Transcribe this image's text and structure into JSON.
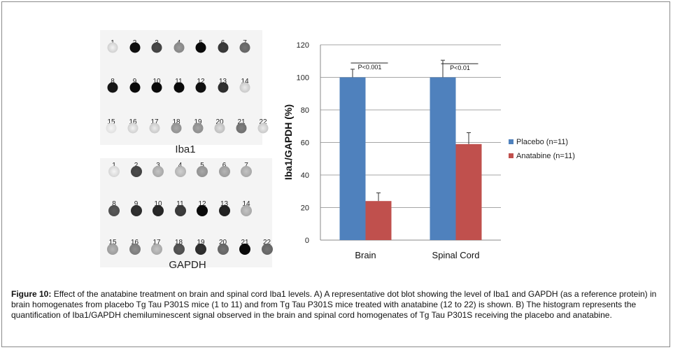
{
  "blots": [
    {
      "label": "Iba1",
      "rows": [
        {
          "samples": [
            "1",
            "2",
            "3",
            "4",
            "5",
            "6",
            "7"
          ],
          "intensity": [
            0.12,
            0.98,
            0.75,
            0.45,
            1.0,
            0.8,
            0.6
          ]
        },
        {
          "samples": [
            "8",
            "9",
            "10",
            "11",
            "12",
            "13",
            "14"
          ],
          "intensity": [
            0.95,
            1.0,
            1.0,
            1.0,
            0.98,
            0.85,
            0.15
          ]
        },
        {
          "samples": [
            "15",
            "16",
            "17",
            "18",
            "19",
            "20",
            "21",
            "22"
          ],
          "intensity": [
            0.05,
            0.12,
            0.15,
            0.4,
            0.42,
            0.2,
            0.55,
            0.15
          ]
        }
      ]
    },
    {
      "label": "GAPDH",
      "rows": [
        {
          "samples": [
            "1",
            "2",
            "3",
            "4",
            "5",
            "6",
            "7"
          ],
          "intensity": [
            0.1,
            0.75,
            0.3,
            0.25,
            0.4,
            0.35,
            0.3
          ]
        },
        {
          "samples": [
            "8",
            "9",
            "10",
            "11",
            "12",
            "13",
            "14"
          ],
          "intensity": [
            0.7,
            0.85,
            0.88,
            0.8,
            1.0,
            0.9,
            0.3
          ]
        },
        {
          "samples": [
            "15",
            "16",
            "17",
            "18",
            "19",
            "20",
            "21",
            "22"
          ],
          "intensity": [
            0.35,
            0.5,
            0.3,
            0.7,
            0.85,
            0.6,
            1.0,
            0.6
          ]
        }
      ]
    }
  ],
  "chart_data": {
    "type": "bar",
    "categories": [
      "Brain",
      "Spinal Cord"
    ],
    "series": [
      {
        "name": "Placebo (n=11)",
        "values": [
          100,
          100
        ],
        "errors": [
          5,
          10.5
        ],
        "color": "#4f81bd"
      },
      {
        "name": "Anatabine (n=11)",
        "values": [
          24,
          59
        ],
        "errors": [
          5,
          7
        ],
        "color": "#c0504d"
      }
    ],
    "ylabel": "Iba1/GAPDH (%)",
    "xlabel": "",
    "ylim": [
      0,
      120
    ],
    "yticks": [
      0,
      20,
      40,
      60,
      80,
      100,
      120
    ],
    "grid": true,
    "legend_position": "right",
    "annotations": [
      "P<0.001",
      "P<0.01"
    ]
  },
  "caption": {
    "label": "Figure 10:",
    "text": " Effect of the anatabine treatment on brain and spinal cord Iba1 levels. A) A representative dot blot showing the level of Iba1 and GAPDH (as a reference protein) in brain homogenates from placebo Tg Tau P301S mice (1 to 11) and from Tg Tau P301S mice treated with anatabine (12 to 22) is shown. B) The  histogram represents the quantification of Iba1/GAPDH chemiluminescent signal observed in the brain and spinal cord homogenates of Tg Tau P301S receiving the placebo and anatabine."
  }
}
